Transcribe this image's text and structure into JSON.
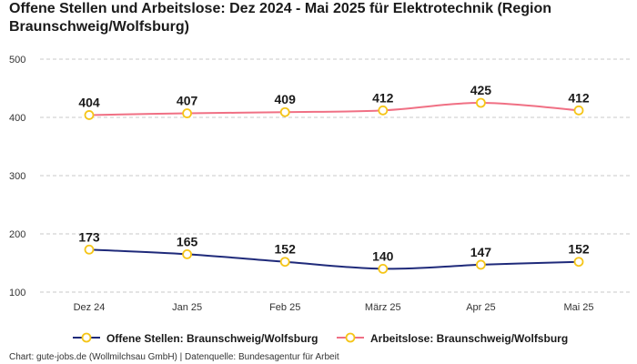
{
  "title": "Offene Stellen und Arbeitslose: Dez 2024 - Mai 2025 für Elektrotechnik (Region Braunschweig/Wolfsburg)",
  "footer": "Chart: gute-jobs.de (Wollmilchsau GmbH) | Datenquelle: Bundesagentur für Arbeit",
  "chart_data": {
    "type": "line",
    "categories": [
      "Dez 24",
      "Jan 25",
      "Feb 25",
      "März 25",
      "Apr 25",
      "Mai 25"
    ],
    "series": [
      {
        "name": "Offene Stellen: Braunschweig/Wolfsburg",
        "values": [
          173,
          165,
          152,
          140,
          147,
          152
        ],
        "color": "#1f2a7a"
      },
      {
        "name": "Arbeitslose: Braunschweig/Wolfsburg",
        "values": [
          404,
          407,
          409,
          412,
          425,
          412
        ],
        "color": "#f07084"
      }
    ],
    "marker_color": "#f5c518",
    "yticks": [
      100,
      200,
      300,
      400,
      500
    ],
    "ylim": [
      100,
      500
    ],
    "grid": true,
    "legend": "bottom",
    "xlabel": "",
    "ylabel": ""
  }
}
